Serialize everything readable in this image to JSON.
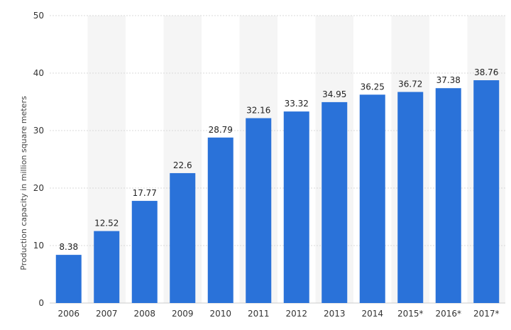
{
  "chart_data": {
    "type": "bar",
    "categories": [
      "2006",
      "2007",
      "2008",
      "2009",
      "2010",
      "2011",
      "2012",
      "2013",
      "2014",
      "2015*",
      "2016*",
      "2017*"
    ],
    "values": [
      8.38,
      12.52,
      17.77,
      22.6,
      28.79,
      32.16,
      33.32,
      34.95,
      36.25,
      36.72,
      37.38,
      38.76
    ],
    "title": "",
    "xlabel": "",
    "ylabel": "Production capacity in million square meters",
    "ylim": [
      0,
      50
    ],
    "yticks": [
      0,
      10,
      20,
      30,
      40,
      50
    ],
    "grid": true,
    "bar_color": "#2a72d9",
    "band_color": "#f5f5f5",
    "grid_color": "#d9d9d9",
    "data_labels": true
  }
}
